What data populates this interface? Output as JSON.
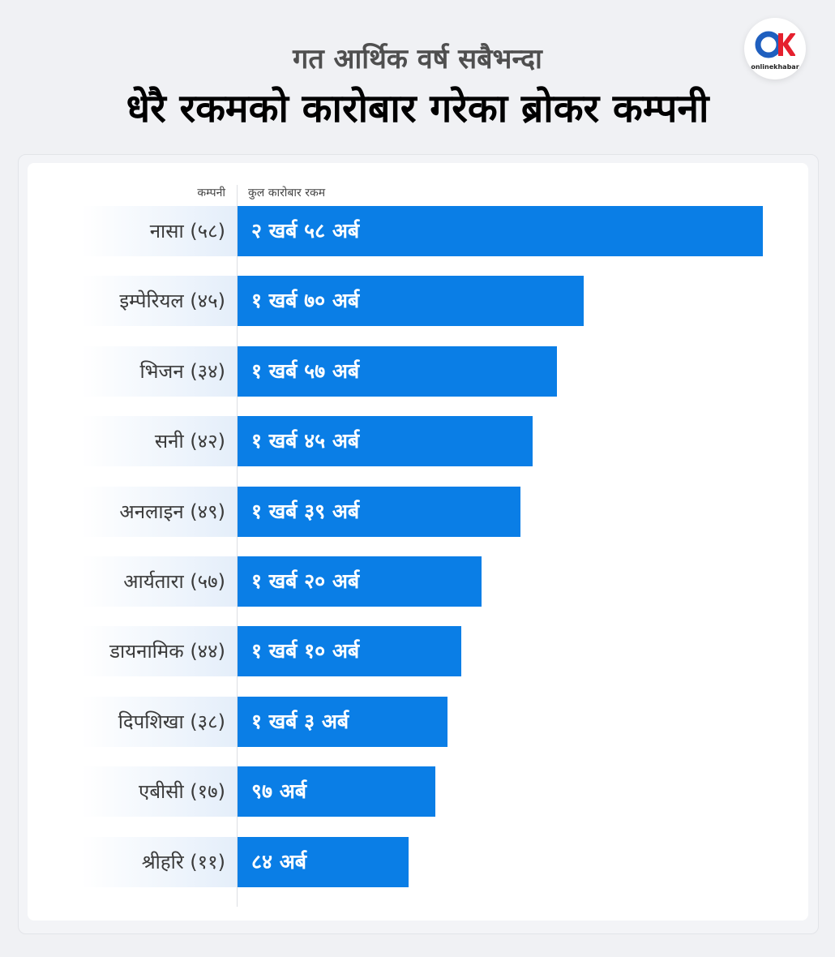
{
  "header": {
    "subtitle": "गत आर्थिक वर्ष सबैभन्दा",
    "title": "धेरै रकमको कारोबार गरेका ब्रोकर कम्पनी"
  },
  "logo": {
    "mark": "OK",
    "text": "onlinekhabar",
    "colors": {
      "blue": "#1f5fbf",
      "red": "#e5202e"
    }
  },
  "columns": {
    "company": "कम्पनी",
    "amount": "कुल कारोबार रकम"
  },
  "colors": {
    "bar": "#0a7ee6",
    "row_bg": "#e4eefa"
  },
  "chart_data": {
    "type": "bar",
    "orientation": "horizontal",
    "unit": "अर्ब",
    "categories": [
      "नासा (५८)",
      "इम्पेरियल (४५)",
      "भिजन (३४)",
      "सनी (४२)",
      "अनलाइन (४९)",
      "आर्यतारा (५७)",
      "डायनामिक (४४)",
      "दिपशिखा (३८)",
      "एबीसी (१७)",
      "श्रीहरि (११)"
    ],
    "values": [
      258,
      170,
      157,
      145,
      139,
      120,
      110,
      103,
      97,
      84
    ],
    "value_labels": [
      "२ खर्ब ५८ अर्ब",
      "१ खर्ब ७० अर्ब",
      "१ खर्ब ५७ अर्ब",
      "१ खर्ब ४५ अर्ब",
      "१ खर्ब ३९ अर्ब",
      "१ खर्ब २० अर्ब",
      "१ खर्ब १० अर्ब",
      "१ खर्ब ३ अर्ब",
      "९७ अर्ब",
      "८४ अर्ब"
    ],
    "xlim": [
      0,
      258
    ]
  }
}
